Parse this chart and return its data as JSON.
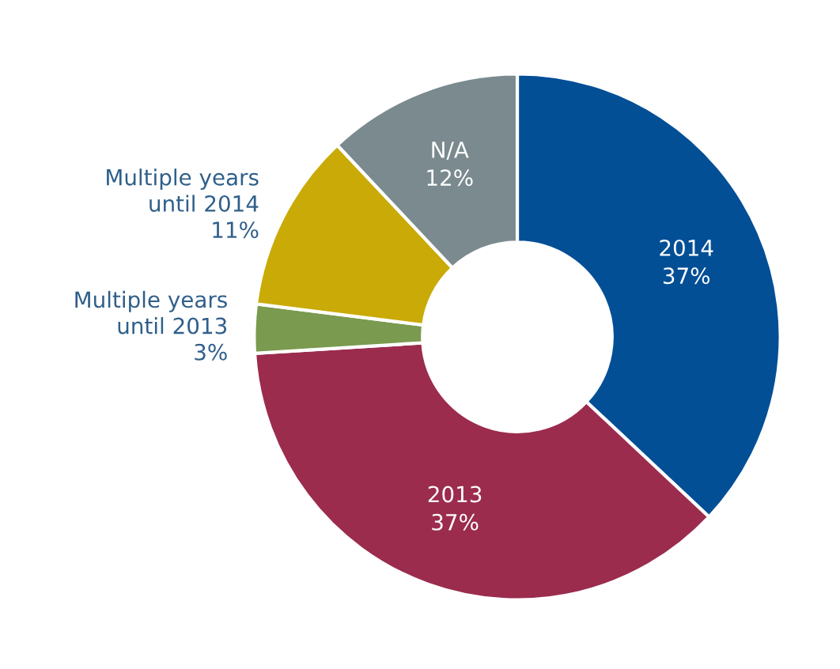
{
  "chart_data": {
    "type": "donut",
    "categories": [
      "2014",
      "2013",
      "Multiple years\nuntil 2013",
      "Multiple years\nuntil 2014",
      "N/A"
    ],
    "values": [
      37,
      37,
      3,
      11,
      12
    ],
    "value_labels": [
      "37%",
      "37%",
      "3%",
      "11%",
      "12%"
    ],
    "colors": [
      "#034f96",
      "#9b2c4e",
      "#7a9a4f",
      "#c9aa07",
      "#7a8a8f"
    ],
    "legend": false
  }
}
